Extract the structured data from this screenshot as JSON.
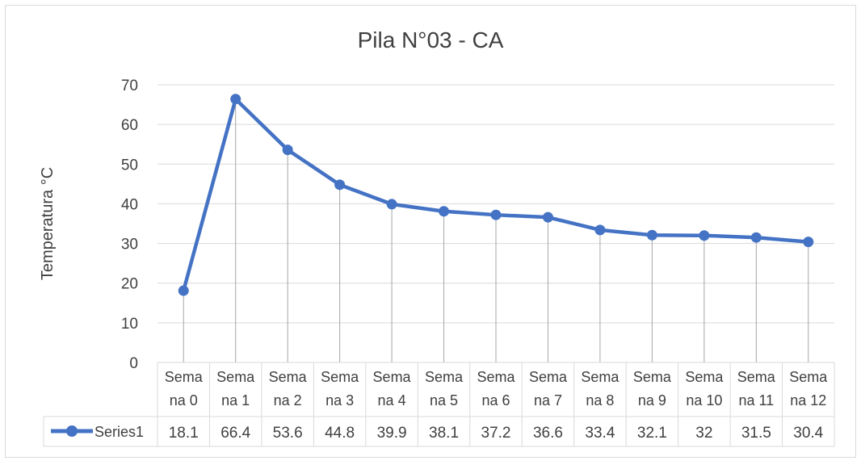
{
  "colors": {
    "series": "#4472C4",
    "grid": "#d9d9d9",
    "droplines": "#a6a6a6",
    "text": "#404040"
  },
  "chart_data": {
    "type": "line",
    "title": "Pila N°03 - CA",
    "ylabel": "Temperatura °C",
    "xlabel": "",
    "ylim": [
      0,
      70
    ],
    "yticks": [
      0,
      10,
      20,
      30,
      40,
      50,
      60,
      70
    ],
    "grid": true,
    "data_table": true,
    "categories": [
      [
        "Sema",
        "na 0"
      ],
      [
        "Sema",
        "na 1"
      ],
      [
        "Sema",
        "na 2"
      ],
      [
        "Sema",
        "na 3"
      ],
      [
        "Sema",
        "na 4"
      ],
      [
        "Sema",
        "na 5"
      ],
      [
        "Sema",
        "na 6"
      ],
      [
        "Sema",
        "na 7"
      ],
      [
        "Sema",
        "na 8"
      ],
      [
        "Sema",
        "na 9"
      ],
      [
        "Sema",
        "na 10"
      ],
      [
        "Sema",
        "na 11"
      ],
      [
        "Sema",
        "na 12"
      ]
    ],
    "series": [
      {
        "name": "Series1",
        "values": [
          18.1,
          66.4,
          53.6,
          44.8,
          39.9,
          38.1,
          37.2,
          36.6,
          33.4,
          32.1,
          32,
          31.5,
          30.4
        ]
      }
    ]
  }
}
